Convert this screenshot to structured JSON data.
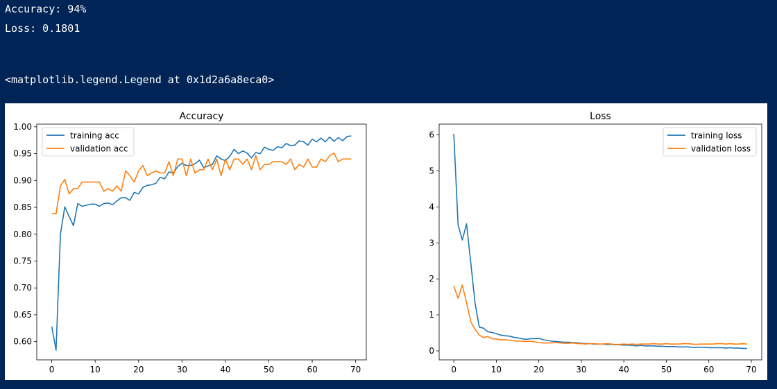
{
  "output": {
    "accuracy_line": "Accuracy: 94%",
    "loss_line": "Loss: 0.1801",
    "legend_repr": "<matplotlib.legend.Legend at 0x1d2a6a8eca0>"
  },
  "colors": {
    "background": "#012456",
    "series1": "#1f77b4",
    "series2": "#ff7f0e"
  },
  "chart_data": [
    {
      "type": "line",
      "title": "Accuracy",
      "xlabel": "",
      "ylabel": "",
      "xlim": [
        -3.45,
        72.45
      ],
      "ylim": [
        0.566,
        1.005
      ],
      "xticks": [
        0,
        10,
        20,
        30,
        40,
        50,
        60,
        70
      ],
      "yticks": [
        0.6,
        0.65,
        0.7,
        0.75,
        0.8,
        0.85,
        0.9,
        0.95,
        1.0
      ],
      "tick_decimals": 2,
      "legend": "upper-left",
      "grid": false,
      "series": [
        {
          "name": "training acc",
          "color": "#1f77b4",
          "values": [
            0.628,
            0.584,
            0.8,
            0.851,
            0.833,
            0.816,
            0.857,
            0.852,
            0.854,
            0.856,
            0.856,
            0.852,
            0.857,
            0.858,
            0.855,
            0.862,
            0.868,
            0.868,
            0.863,
            0.878,
            0.875,
            0.887,
            0.891,
            0.892,
            0.895,
            0.906,
            0.903,
            0.916,
            0.914,
            0.926,
            0.932,
            0.928,
            0.928,
            0.931,
            0.938,
            0.924,
            0.927,
            0.93,
            0.946,
            0.94,
            0.937,
            0.945,
            0.958,
            0.95,
            0.955,
            0.951,
            0.942,
            0.952,
            0.95,
            0.962,
            0.958,
            0.956,
            0.963,
            0.961,
            0.969,
            0.965,
            0.966,
            0.974,
            0.972,
            0.966,
            0.977,
            0.972,
            0.979,
            0.972,
            0.981,
            0.973,
            0.98,
            0.974,
            0.982,
            0.983
          ]
        },
        {
          "name": "validation acc",
          "color": "#ff7f0e",
          "values": [
            0.838,
            0.838,
            0.89,
            0.902,
            0.875,
            0.885,
            0.885,
            0.897,
            0.897,
            0.897,
            0.897,
            0.897,
            0.88,
            0.885,
            0.88,
            0.89,
            0.88,
            0.918,
            0.909,
            0.897,
            0.918,
            0.928,
            0.909,
            0.914,
            0.918,
            0.914,
            0.914,
            0.935,
            0.909,
            0.94,
            0.94,
            0.909,
            0.94,
            0.914,
            0.92,
            0.92,
            0.94,
            0.92,
            0.94,
            0.909,
            0.94,
            0.92,
            0.94,
            0.94,
            0.93,
            0.94,
            0.92,
            0.946,
            0.92,
            0.93,
            0.93,
            0.935,
            0.935,
            0.935,
            0.93,
            0.94,
            0.92,
            0.93,
            0.925,
            0.94,
            0.925,
            0.925,
            0.94,
            0.935,
            0.946,
            0.951,
            0.935,
            0.94,
            0.94,
            0.94
          ]
        }
      ]
    },
    {
      "type": "line",
      "title": "Loss",
      "xlabel": "",
      "ylabel": "",
      "xlim": [
        -3.45,
        72.45
      ],
      "ylim": [
        -0.25,
        6.3
      ],
      "xticks": [
        0,
        10,
        20,
        30,
        40,
        50,
        60,
        70
      ],
      "yticks": [
        0,
        1,
        2,
        3,
        4,
        5,
        6
      ],
      "tick_decimals": 0,
      "legend": "upper-right",
      "grid": false,
      "series": [
        {
          "name": "training loss",
          "color": "#1f77b4",
          "values": [
            6.03,
            3.5,
            3.08,
            3.53,
            2.45,
            1.32,
            0.66,
            0.63,
            0.53,
            0.51,
            0.48,
            0.44,
            0.42,
            0.41,
            0.38,
            0.36,
            0.34,
            0.32,
            0.34,
            0.34,
            0.35,
            0.31,
            0.29,
            0.27,
            0.26,
            0.25,
            0.24,
            0.24,
            0.23,
            0.22,
            0.21,
            0.2,
            0.2,
            0.19,
            0.19,
            0.19,
            0.18,
            0.18,
            0.17,
            0.17,
            0.16,
            0.16,
            0.15,
            0.14,
            0.15,
            0.14,
            0.14,
            0.14,
            0.13,
            0.13,
            0.12,
            0.12,
            0.12,
            0.11,
            0.11,
            0.11,
            0.1,
            0.1,
            0.1,
            0.1,
            0.09,
            0.09,
            0.09,
            0.09,
            0.08,
            0.09,
            0.08,
            0.08,
            0.07,
            0.07
          ]
        },
        {
          "name": "validation loss",
          "color": "#ff7f0e",
          "values": [
            1.8,
            1.46,
            1.83,
            1.34,
            0.81,
            0.6,
            0.44,
            0.37,
            0.4,
            0.34,
            0.33,
            0.31,
            0.31,
            0.3,
            0.28,
            0.27,
            0.27,
            0.26,
            0.27,
            0.25,
            0.23,
            0.22,
            0.22,
            0.22,
            0.23,
            0.22,
            0.21,
            0.21,
            0.22,
            0.2,
            0.2,
            0.19,
            0.2,
            0.2,
            0.19,
            0.19,
            0.2,
            0.19,
            0.18,
            0.18,
            0.19,
            0.18,
            0.19,
            0.18,
            0.19,
            0.19,
            0.19,
            0.2,
            0.19,
            0.19,
            0.2,
            0.19,
            0.19,
            0.19,
            0.2,
            0.2,
            0.19,
            0.18,
            0.19,
            0.19,
            0.19,
            0.19,
            0.2,
            0.2,
            0.19,
            0.2,
            0.19,
            0.19,
            0.2,
            0.19
          ]
        }
      ]
    }
  ]
}
